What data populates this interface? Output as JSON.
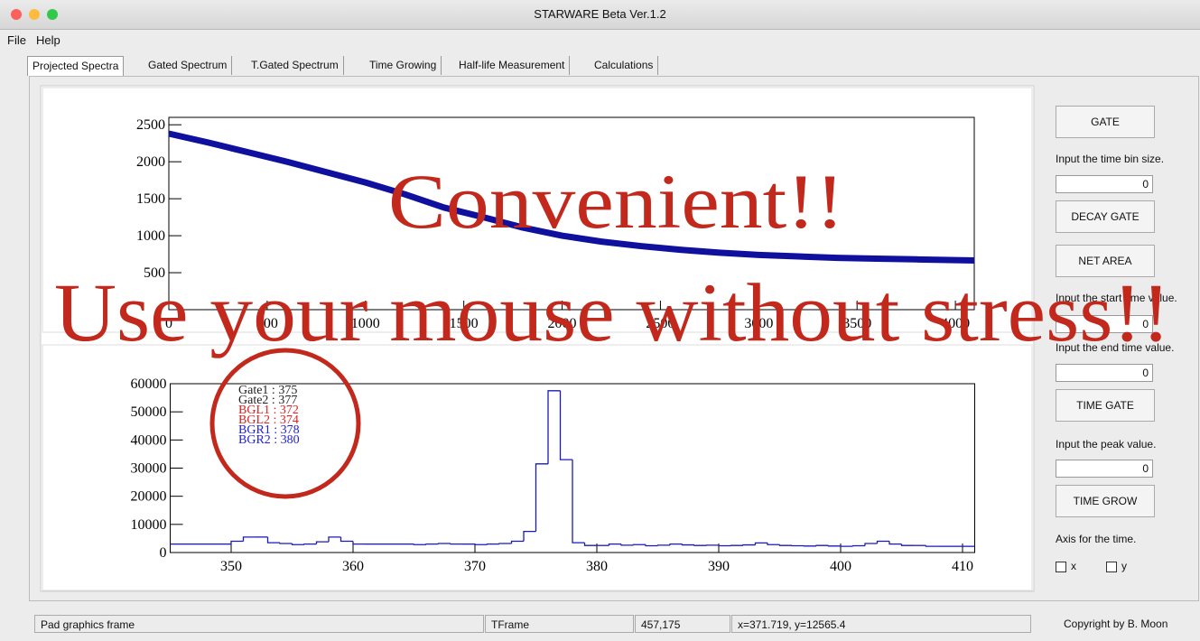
{
  "window": {
    "title": "STARWARE Beta Ver.1.2"
  },
  "menu": [
    "File",
    "Help"
  ],
  "tabs": [
    "Projected Spectra",
    "Gated Spectrum",
    "T.Gated Spectrum",
    "Time Growing",
    "Half-life Measurement",
    "Calculations"
  ],
  "chart_data": [
    {
      "type": "line",
      "color": "#10109e",
      "x": [
        0,
        200,
        400,
        600,
        800,
        1000,
        1200,
        1400,
        1600,
        1800,
        2000,
        2200,
        2400,
        2600,
        2800,
        3000,
        3200,
        3400,
        3600,
        3800,
        4000,
        4096
      ],
      "values": [
        2380,
        2260,
        2130,
        2000,
        1860,
        1720,
        1560,
        1380,
        1250,
        1110,
        1000,
        920,
        860,
        810,
        770,
        740,
        720,
        700,
        690,
        680,
        670,
        665
      ],
      "xlim": [
        0,
        4096
      ],
      "ylim": [
        0,
        2600
      ],
      "xticks": [
        0,
        500,
        1000,
        1500,
        2000,
        2500,
        3000,
        3500,
        4000
      ],
      "yticks": [
        500,
        1000,
        1500,
        2000,
        2500
      ]
    },
    {
      "type": "histogram",
      "color": "#1a1ab8",
      "bins": [
        345,
        346,
        347,
        348,
        349,
        350,
        351,
        352,
        353,
        354,
        355,
        356,
        357,
        358,
        359,
        360,
        361,
        362,
        363,
        364,
        365,
        366,
        367,
        368,
        369,
        370,
        371,
        372,
        373,
        374,
        375,
        376,
        377,
        378,
        379,
        380,
        381,
        382,
        383,
        384,
        385,
        386,
        387,
        388,
        389,
        390,
        391,
        392,
        393,
        394,
        395,
        396,
        397,
        398,
        399,
        400,
        401,
        402,
        403,
        404,
        405,
        406,
        407,
        408,
        409,
        410,
        411
      ],
      "values": [
        3000,
        3000,
        3000,
        3000,
        3000,
        4000,
        5500,
        5500,
        3500,
        3200,
        2800,
        3000,
        3800,
        5500,
        4000,
        3000,
        3000,
        3000,
        3000,
        3000,
        2800,
        3000,
        3200,
        3000,
        3000,
        2800,
        3000,
        3200,
        4000,
        7500,
        31500,
        57500,
        33000,
        3500,
        2500,
        2500,
        3000,
        2600,
        2800,
        2400,
        2600,
        3000,
        2700,
        2500,
        2600,
        2400,
        2500,
        2700,
        3400,
        2800,
        2500,
        2400,
        2300,
        2500,
        2300,
        2200,
        2400,
        3200,
        4000,
        3000,
        2500,
        2500,
        2200,
        2200,
        2200,
        2200
      ],
      "xlim": [
        345,
        411
      ],
      "ylim": [
        0,
        60000
      ],
      "xticks": [
        350,
        360,
        370,
        380,
        390,
        400,
        410
      ],
      "yticks": [
        0,
        10000,
        20000,
        30000,
        40000,
        50000,
        60000
      ],
      "annotations": [
        {
          "text": "Gate1 : 375",
          "color": "#222222"
        },
        {
          "text": "Gate2 : 377",
          "color": "#222222"
        },
        {
          "text": "BGL1 : 372",
          "color": "#e02020"
        },
        {
          "text": "BGL2 : 374",
          "color": "#e02020"
        },
        {
          "text": "BGR1 : 378",
          "color": "#2020e0"
        },
        {
          "text": "BGR2 : 380",
          "color": "#2020e0"
        }
      ]
    }
  ],
  "overlay": {
    "line1": "Convenient!!",
    "line2": "Use your mouse without stress!!"
  },
  "side_panel": {
    "gate": "GATE",
    "bin_size_label": "Input the time bin size.",
    "bin_size_value": 0,
    "decay_gate": "DECAY GATE",
    "net_area": "NET AREA",
    "start_label": "Input the start time value.",
    "start_value": 0,
    "end_label": "Input the end time value.",
    "end_value": 0,
    "time_gate": "TIME GATE",
    "peak_label": "Input the peak value.",
    "peak_value": 0,
    "time_grow": "TIME GROW",
    "axis_label": "Axis for the time.",
    "check_x": "x",
    "check_y": "y"
  },
  "status_bar": [
    "Pad graphics frame",
    "TFrame",
    "457,175",
    "x=371.719, y=12565.4"
  ],
  "copyright": "Copyright by B. Moon"
}
